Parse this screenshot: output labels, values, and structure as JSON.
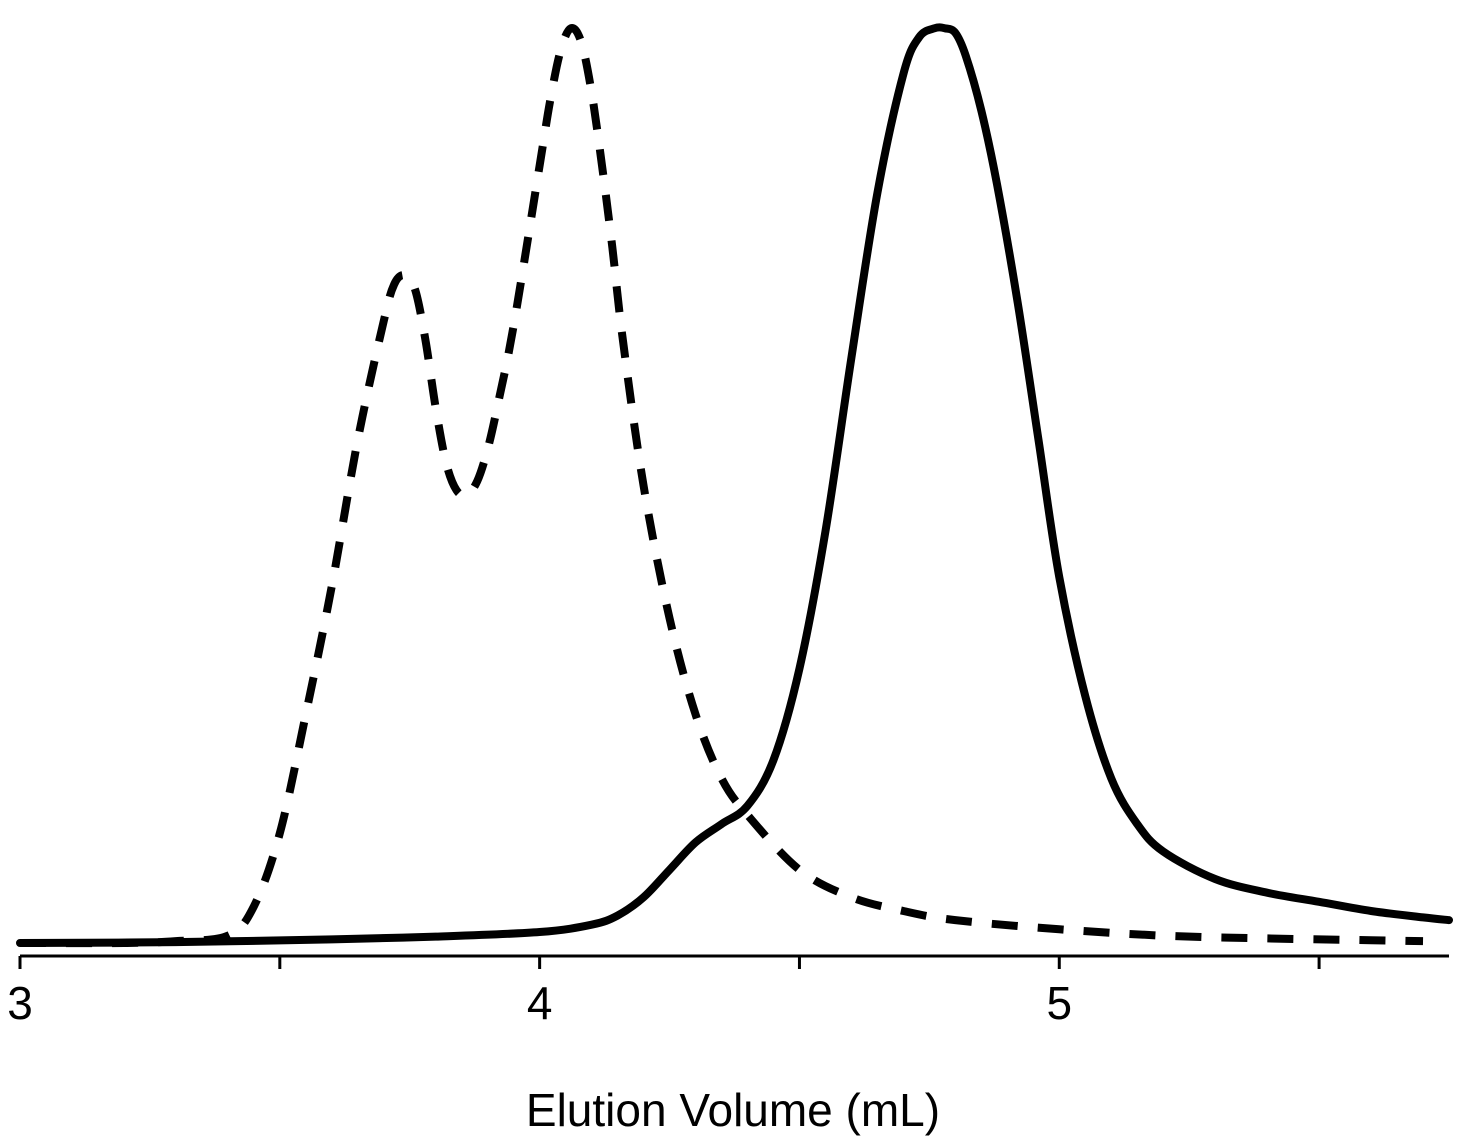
{
  "chart_data": {
    "type": "line",
    "title": "",
    "xlabel": "Elution Volume (mL)",
    "ylabel": "",
    "xlim": [
      3,
      5.75
    ],
    "ylim": [
      0,
      1.02
    ],
    "x_ticks": [
      {
        "value": 3,
        "label": "3"
      },
      {
        "value": 3.5,
        "label": ""
      },
      {
        "value": 4,
        "label": "4"
      },
      {
        "value": 4.5,
        "label": ""
      },
      {
        "value": 5,
        "label": "5"
      },
      {
        "value": 5.5,
        "label": ""
      }
    ],
    "grid": false,
    "legend": "none",
    "series": [
      {
        "style": "dashed",
        "color": "#000000",
        "x": [
          3.0,
          3.2,
          3.3,
          3.4,
          3.45,
          3.5,
          3.55,
          3.6,
          3.65,
          3.7,
          3.72,
          3.74,
          3.76,
          3.78,
          3.8,
          3.82,
          3.84,
          3.86,
          3.88,
          3.9,
          3.92,
          3.95,
          4.0,
          4.02,
          4.04,
          4.06,
          4.08,
          4.1,
          4.12,
          4.14,
          4.16,
          4.2,
          4.25,
          4.3,
          4.35,
          4.4,
          4.5,
          4.6,
          4.7,
          4.8,
          5.0,
          5.2,
          5.4,
          5.6,
          5.7
        ],
        "y": [
          0.0,
          0.0,
          0.002,
          0.008,
          0.04,
          0.12,
          0.25,
          0.39,
          0.55,
          0.68,
          0.72,
          0.73,
          0.715,
          0.66,
          0.585,
          0.525,
          0.495,
          0.49,
          0.505,
          0.54,
          0.59,
          0.675,
          0.85,
          0.92,
          0.975,
          1.0,
          0.985,
          0.93,
          0.85,
          0.76,
          0.66,
          0.5,
          0.355,
          0.25,
          0.18,
          0.14,
          0.08,
          0.05,
          0.035,
          0.025,
          0.015,
          0.008,
          0.005,
          0.003,
          0.002
        ]
      },
      {
        "style": "solid",
        "color": "#000000",
        "x": [
          3.0,
          3.3,
          3.6,
          3.8,
          4.0,
          4.1,
          4.15,
          4.2,
          4.25,
          4.3,
          4.35,
          4.4,
          4.45,
          4.5,
          4.55,
          4.6,
          4.65,
          4.7,
          4.73,
          4.76,
          4.78,
          4.8,
          4.82,
          4.85,
          4.88,
          4.92,
          4.96,
          5.0,
          5.05,
          5.1,
          5.15,
          5.2,
          5.3,
          5.4,
          5.5,
          5.6,
          5.7,
          5.75
        ],
        "y": [
          0.0,
          0.001,
          0.004,
          0.007,
          0.012,
          0.02,
          0.03,
          0.05,
          0.08,
          0.11,
          0.13,
          0.15,
          0.2,
          0.3,
          0.45,
          0.64,
          0.82,
          0.95,
          0.99,
          1.0,
          1.0,
          0.995,
          0.97,
          0.91,
          0.83,
          0.7,
          0.55,
          0.4,
          0.27,
          0.18,
          0.13,
          0.1,
          0.07,
          0.055,
          0.045,
          0.035,
          0.028,
          0.025
        ]
      }
    ]
  }
}
